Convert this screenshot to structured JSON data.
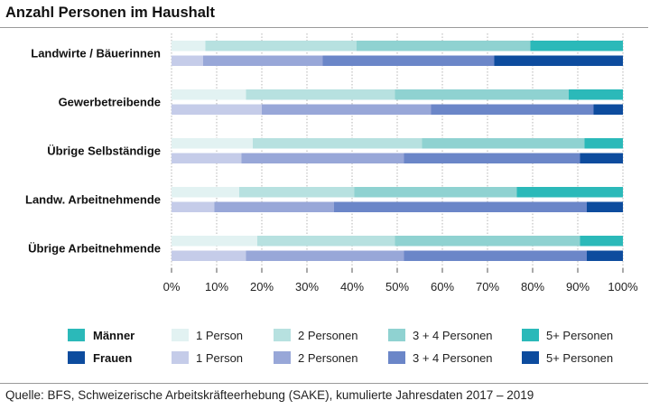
{
  "title": "Anzahl Personen im Haushalt",
  "source": "Quelle: BFS, Schweizerische Arbeitskräfteerhebung (SAKE), kumulierte Jahresdaten 2017 – 2019",
  "chart_data": {
    "type": "bar",
    "orientation": "horizontal",
    "stacked": true,
    "normalized_percent": true,
    "title": "Anzahl Personen im Haushalt",
    "categories": [
      "Landwirte / Bäuerinnen",
      "Gewerbetreibende",
      "Übrige Selbständige",
      "Landw. Arbeitnehmende",
      "Übrige Arbeitnehmende"
    ],
    "stack_labels": [
      "1 Person",
      "2 Personen",
      "3 + 4 Personen",
      "5+ Personen"
    ],
    "groups": [
      {
        "name": "Männer",
        "colors": [
          "#e2f2f2",
          "#b7e1e0",
          "#8fd2d1",
          "#2bb9b9"
        ],
        "values": [
          [
            7.5,
            33.5,
            38.5,
            20.5
          ],
          [
            16.5,
            33.0,
            38.5,
            12.0
          ],
          [
            18.0,
            37.5,
            36.0,
            8.5
          ],
          [
            15.0,
            25.5,
            36.0,
            23.5
          ],
          [
            19.0,
            30.5,
            41.0,
            9.5
          ]
        ]
      },
      {
        "name": "Frauen",
        "colors": [
          "#c5cce9",
          "#98a7d8",
          "#6b86c8",
          "#0d4c9e"
        ],
        "values": [
          [
            7.0,
            26.5,
            38.0,
            28.5
          ],
          [
            20.0,
            37.5,
            36.0,
            6.5
          ],
          [
            15.5,
            36.0,
            39.0,
            9.5
          ],
          [
            9.5,
            26.5,
            56.0,
            8.0
          ],
          [
            16.5,
            35.0,
            40.5,
            8.0
          ]
        ]
      }
    ],
    "x_axis": {
      "range": [
        0,
        100
      ],
      "ticks": [
        0,
        10,
        20,
        30,
        40,
        50,
        60,
        70,
        80,
        90,
        100
      ],
      "tick_labels": [
        "0%",
        "10%",
        "20%",
        "30%",
        "40%",
        "50%",
        "60%",
        "70%",
        "80%",
        "90%",
        "100%"
      ]
    },
    "legend": {
      "position": "bottom",
      "rows": [
        {
          "group": "Männer",
          "labels": [
            "1 Person",
            "2 Personen",
            "3 + 4 Personen",
            "5+ Personen"
          ]
        },
        {
          "group": "Frauen",
          "labels": [
            "1 Person",
            "2 Personen",
            "3 + 4 Personen",
            "5+ Personen"
          ]
        }
      ]
    }
  }
}
